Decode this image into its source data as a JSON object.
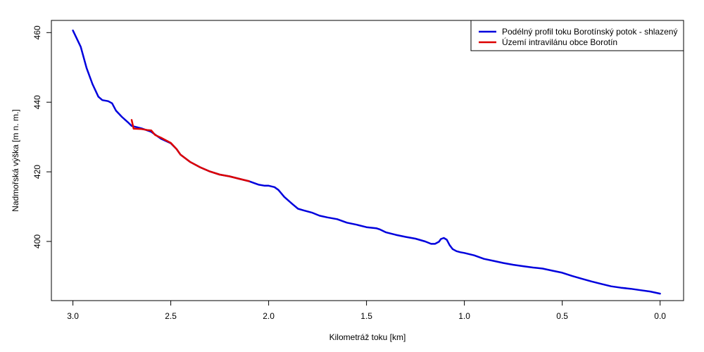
{
  "chart_data": {
    "type": "line",
    "xlabel": "Kilometráž toku [km]",
    "ylabel": "Nadmořská výška [m n. m.]",
    "x_reversed": true,
    "xlim": [
      3.11,
      -0.12
    ],
    "ylim": [
      383.0,
      463.5
    ],
    "x_ticks": [
      3.0,
      2.5,
      2.0,
      1.5,
      1.0,
      0.5,
      0.0
    ],
    "x_tick_labels": [
      "3.0",
      "2.5",
      "2.0",
      "1.5",
      "1.0",
      "0.5",
      "0.0"
    ],
    "y_ticks": [
      400,
      420,
      440,
      460
    ],
    "y_tick_labels": [
      "400",
      "420",
      "440",
      "460"
    ],
    "grid": false,
    "legend_position": "top-right",
    "series": [
      {
        "name": "Podélný profil toku Borotínský potok - shlazený",
        "color": "#0000dd",
        "x": [
          3.0,
          2.96,
          2.93,
          2.9,
          2.87,
          2.85,
          2.82,
          2.8,
          2.78,
          2.75,
          2.72,
          2.7,
          2.65,
          2.6,
          2.55,
          2.5,
          2.47,
          2.45,
          2.4,
          2.35,
          2.3,
          2.25,
          2.2,
          2.15,
          2.1,
          2.05,
          2.02,
          2.0,
          1.97,
          1.95,
          1.92,
          1.88,
          1.85,
          1.82,
          1.78,
          1.74,
          1.7,
          1.65,
          1.6,
          1.55,
          1.5,
          1.45,
          1.43,
          1.4,
          1.35,
          1.3,
          1.25,
          1.2,
          1.17,
          1.15,
          1.13,
          1.12,
          1.105,
          1.09,
          1.075,
          1.06,
          1.04,
          1.02,
          1.0,
          0.95,
          0.9,
          0.85,
          0.8,
          0.75,
          0.7,
          0.65,
          0.6,
          0.55,
          0.5,
          0.45,
          0.4,
          0.35,
          0.3,
          0.25,
          0.2,
          0.15,
          0.1,
          0.05,
          0.0
        ],
        "y": [
          460.6,
          455.9,
          449.8,
          445.2,
          441.6,
          440.6,
          440.3,
          439.7,
          437.6,
          435.8,
          434.3,
          433.2,
          432.5,
          431.5,
          429.5,
          428.2,
          426.5,
          424.9,
          422.8,
          421.3,
          420.1,
          419.2,
          418.7,
          418.0,
          417.3,
          416.3,
          416.0,
          416.0,
          415.6,
          414.8,
          412.8,
          410.8,
          409.4,
          408.9,
          408.3,
          407.4,
          406.9,
          406.4,
          405.4,
          404.8,
          404.1,
          403.8,
          403.4,
          402.6,
          401.9,
          401.3,
          400.8,
          400.0,
          399.3,
          399.3,
          399.9,
          400.7,
          401.0,
          400.5,
          398.9,
          397.8,
          397.2,
          396.9,
          396.7,
          396.0,
          395.0,
          394.4,
          393.8,
          393.3,
          392.9,
          392.5,
          392.2,
          391.6,
          391.0,
          390.1,
          389.3,
          388.5,
          387.8,
          387.1,
          386.7,
          386.4,
          386.0,
          385.6,
          385.0
        ]
      },
      {
        "name": "Území intravilánu obce Borotín",
        "color": "#dd0000",
        "x": [
          2.7,
          2.69,
          2.65,
          2.62,
          2.6,
          2.58,
          2.55,
          2.5,
          2.47,
          2.45,
          2.4,
          2.35,
          2.3,
          2.25,
          2.2,
          2.15,
          2.1
        ],
        "y": [
          434.9,
          432.4,
          432.3,
          432.0,
          431.9,
          430.6,
          429.8,
          428.3,
          426.5,
          424.9,
          422.8,
          421.3,
          420.1,
          419.2,
          418.7,
          418.0,
          417.3
        ]
      }
    ]
  }
}
